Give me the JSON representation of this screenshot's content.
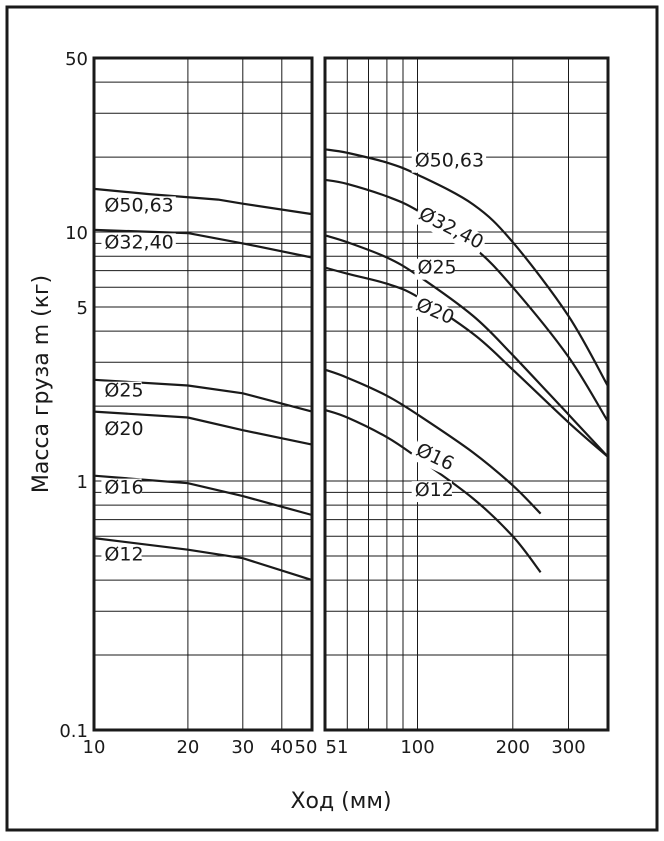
{
  "chart_data": {
    "type": "line",
    "title": "",
    "ylabel": "Масса груза m (кг)",
    "xlabel": "Ход (мм)",
    "y_scale": "log",
    "ylim": [
      0.1,
      50
    ],
    "y_ticks": [
      {
        "value": 50,
        "label": "50"
      },
      {
        "value": 10,
        "label": "10"
      },
      {
        "value": 5,
        "label": "5"
      },
      {
        "value": 1,
        "label": "1"
      },
      {
        "value": 0.1,
        "label": "0.1"
      }
    ],
    "grid": true,
    "panels": [
      {
        "name": "left",
        "x_scale": "log",
        "xlim": [
          10,
          50
        ],
        "x_ticks": [
          {
            "value": 10,
            "label": "10"
          },
          {
            "value": 20,
            "label": "20"
          },
          {
            "value": 30,
            "label": "30"
          },
          {
            "value": 40,
            "label": "40"
          },
          {
            "value": 50,
            "label": "50"
          }
        ],
        "series": [
          {
            "name": "Ø50,63",
            "points": [
              [
                10,
                14.9
              ],
              [
                15,
                14.2
              ],
              [
                25,
                13.5
              ],
              [
                30,
                13.0
              ],
              [
                50,
                11.8
              ]
            ]
          },
          {
            "name": "Ø32,40",
            "points": [
              [
                10,
                10.2
              ],
              [
                20,
                9.9
              ],
              [
                30,
                9.0
              ],
              [
                50,
                7.9
              ]
            ]
          },
          {
            "name": "Ø25",
            "points": [
              [
                10,
                2.55
              ],
              [
                20,
                2.42
              ],
              [
                30,
                2.25
              ],
              [
                50,
                1.9
              ]
            ]
          },
          {
            "name": "Ø20",
            "points": [
              [
                10,
                1.9
              ],
              [
                20,
                1.8
              ],
              [
                30,
                1.6
              ],
              [
                50,
                1.4
              ]
            ]
          },
          {
            "name": "Ø16",
            "points": [
              [
                10,
                1.05
              ],
              [
                20,
                0.98
              ],
              [
                30,
                0.87
              ],
              [
                50,
                0.73
              ]
            ]
          },
          {
            "name": "Ø12",
            "points": [
              [
                10,
                0.59
              ],
              [
                20,
                0.53
              ],
              [
                30,
                0.49
              ],
              [
                50,
                0.4
              ]
            ]
          }
        ]
      },
      {
        "name": "right",
        "x_scale": "log",
        "xlim": [
          51,
          400
        ],
        "x_ticks": [
          {
            "value": 51,
            "label": "51"
          },
          {
            "value": 100,
            "label": "100"
          },
          {
            "value": 200,
            "label": "200"
          },
          {
            "value": 300,
            "label": "300"
          }
        ],
        "series": [
          {
            "name": "Ø50,63",
            "points": [
              [
                51,
                21.5
              ],
              [
                60,
                20.8
              ],
              [
                80,
                19.0
              ],
              [
                100,
                17.0
              ],
              [
                150,
                12.9
              ],
              [
                200,
                9.1
              ],
              [
                300,
                4.6
              ],
              [
                400,
                2.4
              ]
            ]
          },
          {
            "name": "Ø32,40",
            "points": [
              [
                51,
                16.2
              ],
              [
                60,
                15.6
              ],
              [
                80,
                13.9
              ],
              [
                100,
                12.2
              ],
              [
                150,
                8.7
              ],
              [
                200,
                6.0
              ],
              [
                300,
                3.15
              ],
              [
                400,
                1.73
              ]
            ]
          },
          {
            "name": "Ø25",
            "points": [
              [
                51,
                9.7
              ],
              [
                60,
                9.1
              ],
              [
                80,
                7.9
              ],
              [
                100,
                6.7
              ],
              [
                150,
                4.6
              ],
              [
                200,
                3.2
              ],
              [
                300,
                1.85
              ],
              [
                400,
                1.25
              ]
            ]
          },
          {
            "name": "Ø20",
            "points": [
              [
                51,
                7.2
              ],
              [
                60,
                6.8
              ],
              [
                80,
                6.2
              ],
              [
                100,
                5.5
              ],
              [
                150,
                3.9
              ],
              [
                200,
                2.8
              ],
              [
                300,
                1.72
              ],
              [
                400,
                1.25
              ]
            ]
          },
          {
            "name": "Ø16",
            "points": [
              [
                51,
                2.8
              ],
              [
                60,
                2.6
              ],
              [
                80,
                2.2
              ],
              [
                100,
                1.85
              ],
              [
                150,
                1.3
              ],
              [
                200,
                0.96
              ],
              [
                245,
                0.74
              ]
            ]
          },
          {
            "name": "Ø12",
            "points": [
              [
                51,
                1.93
              ],
              [
                60,
                1.8
              ],
              [
                80,
                1.5
              ],
              [
                100,
                1.24
              ],
              [
                150,
                0.85
              ],
              [
                200,
                0.6
              ],
              [
                245,
                0.43
              ]
            ]
          }
        ]
      }
    ],
    "labels": [
      {
        "text": "Ø50,63",
        "panel": "left",
        "x": 10.8,
        "y": 12.1
      },
      {
        "text": "Ø32,40",
        "panel": "left",
        "x": 10.8,
        "y": 8.6
      },
      {
        "text": "Ø25",
        "panel": "left",
        "x": 10.8,
        "y": 2.18
      },
      {
        "text": "Ø20",
        "panel": "left",
        "x": 10.8,
        "y": 1.53
      },
      {
        "text": "Ø16",
        "panel": "left",
        "x": 10.8,
        "y": 0.89
      },
      {
        "text": "Ø12",
        "panel": "left",
        "x": 10.8,
        "y": 0.48
      },
      {
        "text": "Ø50,63",
        "panel": "right",
        "x": 98,
        "y": 18.3
      },
      {
        "text": "Ø32,40",
        "panel": "right",
        "x": 100,
        "y": 11.4,
        "rotate": 27
      },
      {
        "text": "Ø25",
        "panel": "right",
        "x": 100,
        "y": 6.8
      },
      {
        "text": "Ø20",
        "panel": "right",
        "x": 98,
        "y": 4.9,
        "rotate": 23
      },
      {
        "text": "Ø16",
        "panel": "right",
        "x": 98,
        "y": 1.28,
        "rotate": 25
      },
      {
        "text": "Ø12",
        "panel": "right",
        "x": 98,
        "y": 0.87
      }
    ]
  }
}
